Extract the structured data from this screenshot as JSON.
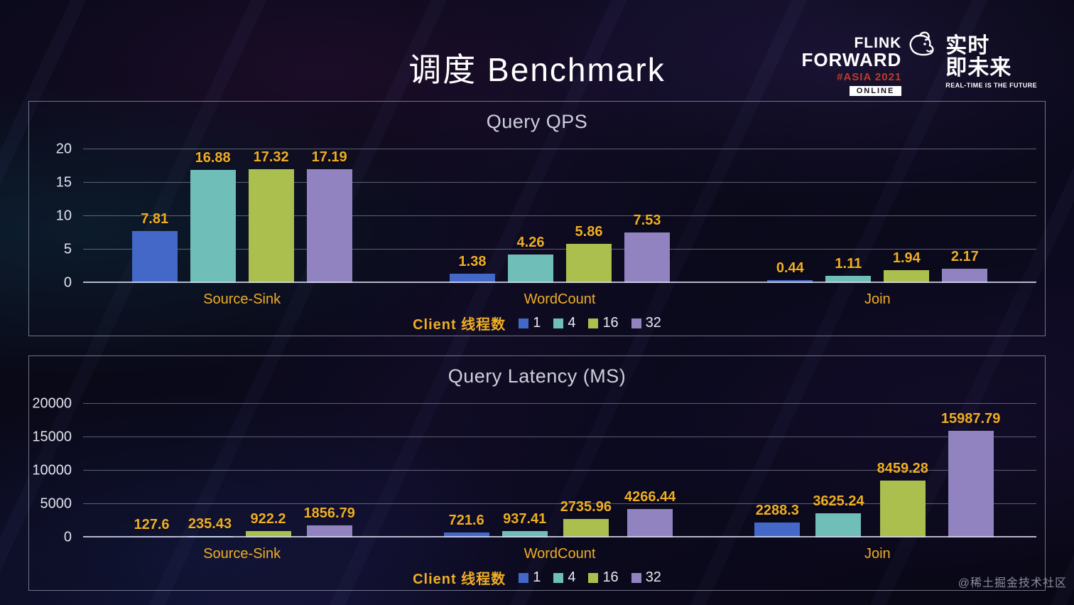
{
  "slide": {
    "title": "调度 Benchmark",
    "watermark": "@稀土掘金技术社区"
  },
  "logo": {
    "flink": "FLINK",
    "forward": "FORWARD",
    "asia": "#ASIA 2021",
    "online": "ONLINE",
    "cn_line1": "实时",
    "cn_line2": "即未来",
    "en_sub": "REAL-TIME IS THE FUTURE"
  },
  "legend": {
    "label": "Client 线程数",
    "items": [
      {
        "label": "1",
        "color": "#4468c8"
      },
      {
        "label": "4",
        "color": "#6fbeb8"
      },
      {
        "label": "16",
        "color": "#aabf4e"
      },
      {
        "label": "32",
        "color": "#9183bf"
      }
    ]
  },
  "chart_data": [
    {
      "type": "bar",
      "title": "Query QPS",
      "categories": [
        "Source-Sink",
        "WordCount",
        "Join"
      ],
      "series": [
        {
          "name": "1",
          "color": "#4468c8",
          "values": [
            7.81,
            1.38,
            0.44
          ]
        },
        {
          "name": "4",
          "color": "#6fbeb8",
          "values": [
            16.88,
            4.26,
            1.11
          ]
        },
        {
          "name": "16",
          "color": "#aabf4e",
          "values": [
            17.32,
            5.86,
            1.94
          ]
        },
        {
          "name": "32",
          "color": "#9183bf",
          "values": [
            17.19,
            7.53,
            2.17
          ]
        }
      ],
      "ylim": [
        0,
        20
      ],
      "yticks": [
        0,
        5,
        10,
        15,
        20
      ],
      "grid": true,
      "legend_position": "bottom",
      "legend_label": "Client 线程数"
    },
    {
      "type": "bar",
      "title": "Query Latency (MS)",
      "categories": [
        "Source-Sink",
        "WordCount",
        "Join"
      ],
      "series": [
        {
          "name": "1",
          "color": "#4468c8",
          "values": [
            127.6,
            721.6,
            2288.3
          ]
        },
        {
          "name": "4",
          "color": "#6fbeb8",
          "values": [
            235.43,
            937.41,
            3625.24
          ]
        },
        {
          "name": "16",
          "color": "#aabf4e",
          "values": [
            922.2,
            2735.96,
            8459.28
          ]
        },
        {
          "name": "32",
          "color": "#9183bf",
          "values": [
            1856.79,
            4266.44,
            15987.79
          ]
        }
      ],
      "ylim": [
        0,
        20000
      ],
      "yticks": [
        0,
        5000,
        10000,
        15000,
        20000
      ],
      "grid": true,
      "legend_position": "bottom",
      "legend_label": "Client 线程数"
    }
  ],
  "colors": {
    "data_label": "#efae24",
    "axis_text": "#e2e3ee",
    "chart_title": "#cfcfdc",
    "asia_red": "#bf3a2b"
  }
}
